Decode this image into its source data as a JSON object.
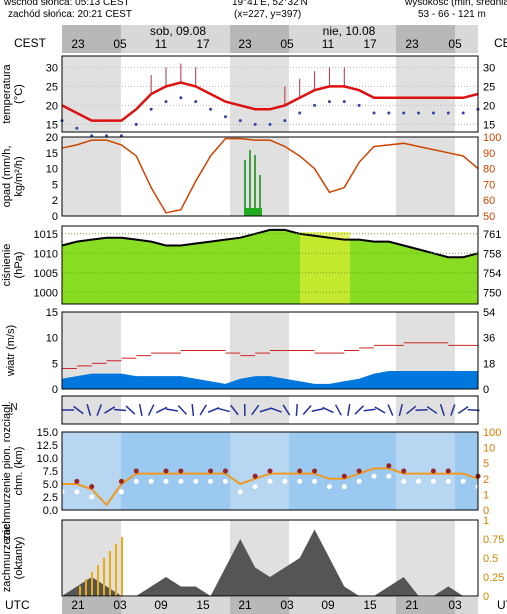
{
  "header": {
    "sunrise": "wschód słońca: 05:13 CEST",
    "sunset": "zachód słońca: 20:21 CEST",
    "coords": "19°41'E, 52°32'N",
    "grid": "(x=227, y=397)",
    "elev_label": "wysokość (min, średnia",
    "elev_values": "53 - 66 - 121 m"
  },
  "tz_top": "CEST",
  "tz_bottom": "UTC",
  "days": [
    "sob, 09.08",
    "nie, 10.08"
  ],
  "hours_top": [
    "23",
    "05",
    "11",
    "17",
    "23",
    "05",
    "11",
    "17",
    "23",
    "05"
  ],
  "hours_bottom": [
    "21",
    "03",
    "09",
    "15",
    "21",
    "03",
    "09",
    "15",
    "21",
    "03"
  ],
  "colors": {
    "temp": "#dd1111",
    "pressure_fill": "#88dd22",
    "wind": "#0077dd",
    "visibility": "#ee9922",
    "panel_bg": "#9cc9f0",
    "shade": "#e0e0e0"
  },
  "chart_data": [
    {
      "type": "line",
      "title": "",
      "ylabel": "temperatura (°C)",
      "ylim": [
        13,
        33
      ],
      "y_ticks": [
        15,
        20,
        25,
        30
      ],
      "series": [
        {
          "values": [
            20,
            18,
            16,
            16,
            16,
            19,
            23,
            25,
            26,
            25,
            23,
            21,
            20,
            19,
            19,
            20,
            22,
            24,
            25,
            25,
            24,
            22,
            22,
            22,
            22,
            22,
            22,
            22,
            23
          ]
        }
      ]
    },
    {
      "type": "line",
      "title": "",
      "ylabel": "opad (mm/h, kg/m²/h)",
      "ylim": [
        0,
        20
      ],
      "y_ticks": [
        0,
        2,
        5,
        10,
        15,
        20
      ],
      "right_ticks": [
        "50",
        "60",
        "70",
        "80",
        "90",
        "100"
      ],
      "series": [
        {
          "values": [
            93,
            95,
            98,
            98,
            95,
            88,
            68,
            52,
            54,
            72,
            88,
            99,
            99,
            98,
            98,
            94,
            88,
            80,
            65,
            68,
            84,
            94,
            95,
            96,
            94,
            92,
            90,
            88,
            80
          ]
        }
      ]
    },
    {
      "type": "area",
      "title": "",
      "ylabel": "ciśnienie (hPa)",
      "ylim": [
        997,
        1017
      ],
      "y_ticks": [
        1000,
        1005,
        1010,
        1015
      ],
      "right_ticks": [
        "750",
        "754",
        "758",
        "761"
      ],
      "series": [
        {
          "values": [
            1012,
            1013,
            1013.5,
            1014,
            1014,
            1013.5,
            1013,
            1012,
            1012,
            1012.5,
            1013,
            1013.5,
            1014,
            1015,
            1016,
            1016,
            1015,
            1014.5,
            1014,
            1013.5,
            1013.5,
            1013,
            1013,
            1012,
            1011,
            1010,
            1009,
            1009,
            1010
          ]
        }
      ]
    },
    {
      "type": "area",
      "title": "",
      "ylabel": "wiatr (m/s)",
      "ylim": [
        0,
        15
      ],
      "y_ticks": [
        0,
        5,
        10,
        15
      ],
      "right_ticks": [
        "0",
        "18",
        "36",
        "54"
      ],
      "series": [
        {
          "values": [
            2,
            2.5,
            3,
            3,
            3,
            2.5,
            2.5,
            2.5,
            2.5,
            2,
            1.5,
            1,
            2,
            2.5,
            2.5,
            2,
            1.5,
            1,
            1,
            1.5,
            2,
            3,
            3.5,
            3.5,
            3.5,
            3.5,
            3.5,
            3.5,
            3.5
          ]
        },
        {
          "values": [
            4,
            4.5,
            5,
            5.5,
            6,
            6.5,
            7,
            7,
            7.5,
            7.5,
            7.5,
            7,
            6.5,
            7,
            7.5,
            7.5,
            7.5,
            7,
            7,
            7.5,
            8,
            8.5,
            8.5,
            9,
            9,
            9,
            8.5,
            8.5,
            9
          ]
        }
      ]
    },
    {
      "type": "line",
      "title": "",
      "ylabel": "zachmurzenie pion. rozciągł. chm. (km)",
      "ylim": [
        0,
        15
      ],
      "y_ticks": [
        "0.0",
        "2.5",
        "5.0",
        "7.5",
        "10.0",
        "12.5",
        "15.0"
      ],
      "right_ticks": [
        "0",
        "1",
        "2",
        "5",
        "10",
        "100"
      ],
      "series": [
        {
          "values": [
            5,
            5,
            4,
            1,
            5,
            7,
            7,
            7,
            7,
            7,
            7,
            7,
            5,
            6,
            7,
            7,
            7,
            7,
            6,
            6,
            7,
            8,
            8,
            7,
            7,
            7,
            7,
            7,
            6
          ]
        }
      ]
    },
    {
      "type": "area",
      "title": "",
      "ylabel": "zachmurzenie (oktanty)",
      "ylim": [
        0,
        8
      ],
      "right_ticks": [
        "0",
        "0.25",
        "0.5",
        "0.75",
        "1"
      ],
      "series": [
        {
          "values": [
            0,
            1,
            2,
            1,
            0,
            0,
            1,
            2,
            1,
            1,
            0,
            3,
            6,
            3,
            2,
            3,
            4,
            7,
            4,
            1,
            0,
            0,
            1,
            2,
            0,
            0,
            1,
            0,
            0
          ]
        }
      ]
    }
  ]
}
